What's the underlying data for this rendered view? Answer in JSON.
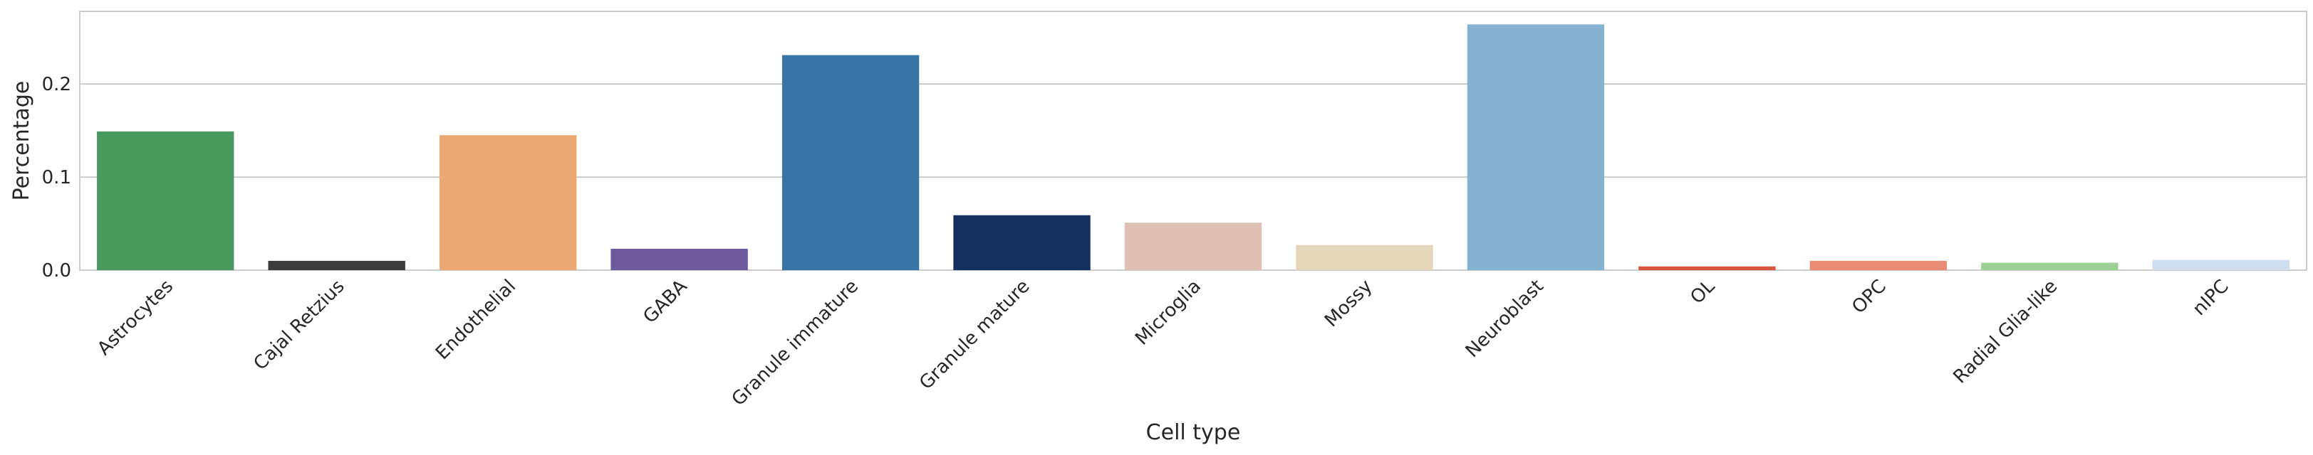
{
  "chart_data": {
    "type": "bar",
    "title": "",
    "xlabel": "Cell type",
    "ylabel": "Percentage",
    "ylim": [
      0,
      0.278
    ],
    "yticks": [
      0.0,
      0.1,
      0.2
    ],
    "ytick_labels": [
      "0.0",
      "0.1",
      "0.2"
    ],
    "grid": true,
    "categories": [
      "Astrocytes",
      "Cajal Retzius",
      "Endothelial",
      "GABA",
      "Granule immature",
      "Granule mature",
      "Microglia",
      "Mossy",
      "Neuroblast",
      "OL",
      "OPC",
      "Radial Glia-like",
      "nIPC"
    ],
    "values": [
      0.149,
      0.01,
      0.145,
      0.023,
      0.231,
      0.059,
      0.051,
      0.027,
      0.264,
      0.004,
      0.01,
      0.008,
      0.011
    ],
    "colors": [
      "#4a9a5f",
      "#3c3c3c",
      "#eca973",
      "#6d5a9c",
      "#3875a6",
      "#15305f",
      "#dfc0b4",
      "#e4d6bb",
      "#86b3d1",
      "#d9543f",
      "#ea8b73",
      "#9ecf96",
      "#cfdeee"
    ]
  }
}
